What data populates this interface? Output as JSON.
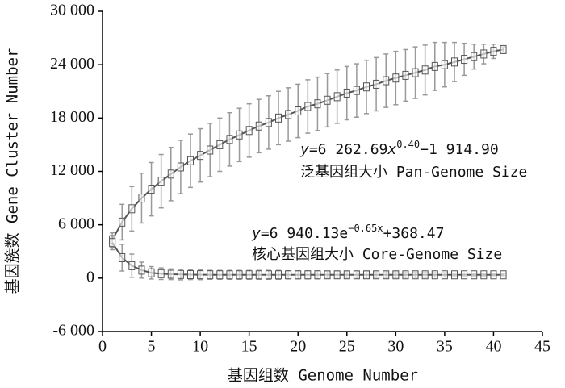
{
  "chart_data": {
    "type": "line",
    "x_label": "基因组数 Genome Number",
    "y_label": "基因簇数 Gene Cluster Number",
    "x": [
      1,
      2,
      3,
      4,
      5,
      6,
      7,
      8,
      9,
      10,
      11,
      12,
      13,
      14,
      15,
      16,
      17,
      18,
      19,
      20,
      21,
      22,
      23,
      24,
      25,
      26,
      27,
      28,
      29,
      30,
      31,
      32,
      33,
      34,
      35,
      36,
      37,
      38,
      39,
      40,
      41
    ],
    "series": [
      {
        "name": "泛基因组大小 Pan-Genome Size",
        "color": "#555555",
        "values": [
          4300,
          6300,
          7800,
          9000,
          10000,
          10900,
          11700,
          12500,
          13200,
          13800,
          14400,
          15000,
          15600,
          16100,
          16600,
          17100,
          17500,
          18000,
          18400,
          18800,
          19300,
          19600,
          20000,
          20400,
          20800,
          21100,
          21500,
          21800,
          22200,
          22500,
          22800,
          23100,
          23400,
          23800,
          24000,
          24300,
          24600,
          24900,
          25200,
          25500,
          25700
        ],
        "errors": [
          800,
          2000,
          2500,
          2800,
          3000,
          3000,
          3000,
          3000,
          3000,
          3000,
          3000,
          3000,
          3000,
          3000,
          3000,
          3000,
          3000,
          3000,
          3000,
          3000,
          3000,
          3000,
          3000,
          3000,
          3000,
          3000,
          3000,
          3000,
          3000,
          3000,
          2900,
          2900,
          2800,
          2700,
          2500,
          2200,
          1800,
          1400,
          1100,
          800,
          300
        ]
      },
      {
        "name": "核心基因组大小 Core-Genome Size",
        "color": "#555555",
        "values": [
          4000,
          2300,
          1400,
          900,
          600,
          500,
          440,
          410,
          390,
          380,
          375,
          372,
          370,
          370,
          370,
          370,
          370,
          370,
          370,
          370,
          370,
          370,
          370,
          370,
          370,
          370,
          370,
          370,
          370,
          370,
          370,
          370,
          370,
          370,
          370,
          370,
          370,
          370,
          370,
          370,
          370
        ],
        "errors": [
          800,
          1500,
          1300,
          900,
          700,
          650,
          600,
          600,
          550,
          550,
          500,
          500,
          500,
          500,
          500,
          500,
          500,
          500,
          450,
          450,
          450,
          450,
          400,
          400,
          400,
          400,
          400,
          350,
          350,
          350,
          300,
          300,
          300,
          250,
          250,
          200,
          200,
          150,
          150,
          100,
          100
        ]
      }
    ],
    "annotations": [
      {
        "parts": [
          "y",
          "=6 262.69",
          "x",
          "0.40",
          "−1 914.90"
        ]
      },
      {
        "parts": [
          "y",
          "=6 940.13e",
          "−0.65x",
          "+368.47"
        ]
      }
    ],
    "xlim": [
      0,
      45
    ],
    "xticks": [
      0,
      5,
      10,
      15,
      20,
      25,
      30,
      35,
      40,
      45
    ],
    "ylim": [
      -6000,
      30000
    ],
    "yticks": [
      {
        "value": -6000,
        "label": "-6 000"
      },
      0,
      {
        "value": 6000,
        "label": "6 000"
      },
      {
        "value": 12000,
        "label": "12 000"
      },
      {
        "value": 18000,
        "label": "18 000"
      },
      {
        "value": 24000,
        "label": "24 000"
      },
      {
        "value": 30000,
        "label": "30 000"
      }
    ]
  }
}
